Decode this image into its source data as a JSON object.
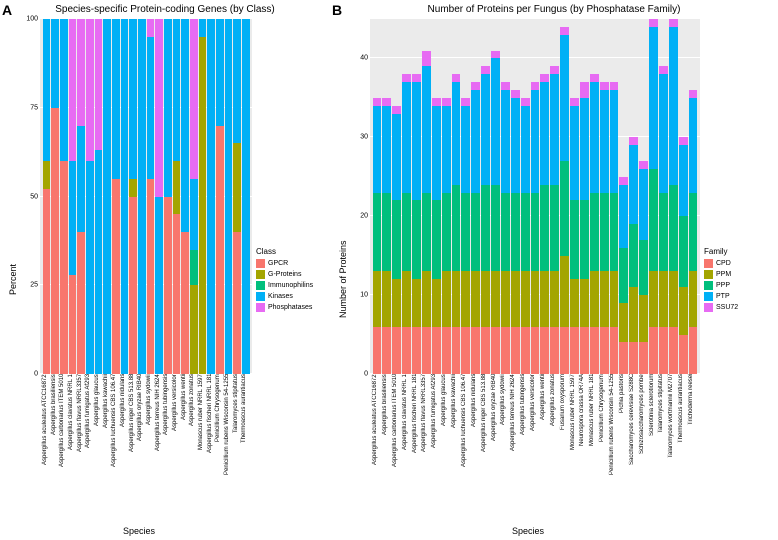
{
  "panelA": {
    "label": "A",
    "title": "Species-specific Protein-coding Genes (by Class)",
    "ylabel": "Percent",
    "xlabel": "Species",
    "ylim": [
      0,
      100
    ],
    "yticks": [
      0,
      25,
      50,
      75,
      100
    ],
    "background_color": "#ebebeb",
    "grid_color": "#ffffff",
    "legend_title": "Class",
    "classes": [
      "GPCR",
      "G-Proteins",
      "Immunophilins",
      "Kinases",
      "Phosphatases"
    ],
    "colors": {
      "GPCR": "#f8766d",
      "G-Proteins": "#a3a500",
      "Immunophilins": "#00bf7d",
      "Kinases": "#00b0f6",
      "Phosphatases": "#e76bf3"
    },
    "species": [
      "Aspergillus aculeatus ATCC16872",
      "Aspergillus brasiliensis",
      "Aspergillus carbonarius ITEM 5010",
      "Aspergillus clavatus NRRL 1",
      "Aspergillus flavus NRRL3357",
      "Aspergillus fumigatus Af293",
      "Aspergillus glaucus",
      "Aspergillus kawachii",
      "Aspergillus luchuensis CBS 106.47",
      "Aspergillus nidulans",
      "Aspergillus niger CBS 513.88",
      "Aspergillus oryzae RIB40",
      "Aspergillus sydowii",
      "Aspergillus terreus NIH 2624",
      "Aspergillus tubingensis",
      "Aspergillus versicolor",
      "Aspergillus wentii",
      "Aspergillus zonatus",
      "Monascus ruber NRRL 1597",
      "Aspergillus fischeri NRRL 181",
      "Penicillium Chrysogenum",
      "Penicillium rubens Wisconsin 54-1255",
      "Talaromyces stipitatus",
      "Thermoascus aurantiacus"
    ],
    "data": [
      {
        "GPCR": 52,
        "G-Proteins": 8,
        "Immunophilins": 0,
        "Kinases": 40,
        "Phosphatases": 0
      },
      {
        "GPCR": 75,
        "G-Proteins": 0,
        "Immunophilins": 0,
        "Kinases": 25,
        "Phosphatases": 0
      },
      {
        "GPCR": 60,
        "G-Proteins": 0,
        "Immunophilins": 0,
        "Kinases": 40,
        "Phosphatases": 0
      },
      {
        "GPCR": 28,
        "G-Proteins": 0,
        "Immunophilins": 0,
        "Kinases": 32,
        "Phosphatases": 40
      },
      {
        "GPCR": 40,
        "G-Proteins": 0,
        "Immunophilins": 0,
        "Kinases": 30,
        "Phosphatases": 30
      },
      {
        "GPCR": 0,
        "G-Proteins": 0,
        "Immunophilins": 0,
        "Kinases": 60,
        "Phosphatases": 40
      },
      {
        "GPCR": 0,
        "G-Proteins": 0,
        "Immunophilins": 0,
        "Kinases": 63,
        "Phosphatases": 37
      },
      {
        "GPCR": 0,
        "G-Proteins": 0,
        "Immunophilins": 0,
        "Kinases": 100,
        "Phosphatases": 0
      },
      {
        "GPCR": 55,
        "G-Proteins": 0,
        "Immunophilins": 0,
        "Kinases": 45,
        "Phosphatases": 0
      },
      {
        "GPCR": 0,
        "G-Proteins": 0,
        "Immunophilins": 0,
        "Kinases": 100,
        "Phosphatases": 0
      },
      {
        "GPCR": 50,
        "G-Proteins": 5,
        "Immunophilins": 0,
        "Kinases": 45,
        "Phosphatases": 0
      },
      {
        "GPCR": 0,
        "G-Proteins": 0,
        "Immunophilins": 0,
        "Kinases": 100,
        "Phosphatases": 0
      },
      {
        "GPCR": 55,
        "G-Proteins": 0,
        "Immunophilins": 0,
        "Kinases": 40,
        "Phosphatases": 5
      },
      {
        "GPCR": 0,
        "G-Proteins": 0,
        "Immunophilins": 0,
        "Kinases": 50,
        "Phosphatases": 50
      },
      {
        "GPCR": 50,
        "G-Proteins": 0,
        "Immunophilins": 0,
        "Kinases": 50,
        "Phosphatases": 0
      },
      {
        "GPCR": 45,
        "G-Proteins": 15,
        "Immunophilins": 0,
        "Kinases": 40,
        "Phosphatases": 0
      },
      {
        "GPCR": 40,
        "G-Proteins": 0,
        "Immunophilins": 0,
        "Kinases": 60,
        "Phosphatases": 0
      },
      {
        "GPCR": 0,
        "G-Proteins": 25,
        "Immunophilins": 10,
        "Kinases": 20,
        "Phosphatases": 45
      },
      {
        "GPCR": 0,
        "G-Proteins": 95,
        "Immunophilins": 0,
        "Kinases": 5,
        "Phosphatases": 0
      },
      {
        "GPCR": 0,
        "G-Proteins": 0,
        "Immunophilins": 0,
        "Kinases": 100,
        "Phosphatases": 0
      },
      {
        "GPCR": 70,
        "G-Proteins": 0,
        "Immunophilins": 0,
        "Kinases": 30,
        "Phosphatases": 0
      },
      {
        "GPCR": 0,
        "G-Proteins": 0,
        "Immunophilins": 0,
        "Kinases": 100,
        "Phosphatases": 0
      },
      {
        "GPCR": 40,
        "G-Proteins": 25,
        "Immunophilins": 0,
        "Kinases": 35,
        "Phosphatases": 0
      },
      {
        "GPCR": 0,
        "G-Proteins": 0,
        "Immunophilins": 0,
        "Kinases": 100,
        "Phosphatases": 0
      }
    ]
  },
  "panelB": {
    "label": "B",
    "title": "Number of Proteins per Fungus (by Phosphatase Family)",
    "ylabel": "Number of Proteins",
    "xlabel": "Species",
    "ylim": [
      0,
      45
    ],
    "yticks": [
      0,
      10,
      20,
      30,
      40
    ],
    "background_color": "#ebebeb",
    "grid_color": "#ffffff",
    "legend_title": "Family",
    "families": [
      "CPD",
      "PPM",
      "PPP",
      "PTP",
      "SSU72"
    ],
    "colors": {
      "CPD": "#f8766d",
      "PPM": "#a3a500",
      "PPP": "#00bf7d",
      "PTP": "#00b0f6",
      "SSU72": "#e76bf3"
    },
    "species": [
      "Aspergillus aculeatus ATCC16872",
      "Aspergillus brasiliensis",
      "Aspergillus carbonarius ITEM 5010",
      "Aspergillus clavatus NRRL 1",
      "Aspergillus fischeri NRRL 181",
      "Aspergillus flavus NRRL3357",
      "Aspergillus fumigatus Af293",
      "Aspergillus glaucus",
      "Aspergillus kawachii",
      "Aspergillus luchuensis CBS 106.47",
      "Aspergillus nidulans",
      "Aspergillus niger CBS 513.88",
      "Aspergillus oryzae RIB40",
      "Aspergillus sydowii",
      "Aspergillus terreus NIH 2624",
      "Aspergillus tubingensis",
      "Aspergillus versicolor",
      "Aspergillus wentii",
      "Aspergillus zonatus",
      "Fusarium oxysporum",
      "Monascus ruber NRRL 1597",
      "Neurospora crassa OR74A",
      "Monascus ruber NRRL 181",
      "Penicillium Chrysogenum",
      "Penicillium rubens Wisconsin 54-1255",
      "Pichia pastoris",
      "Saccharomyces cerevisiae S288C",
      "Schizosaccharomyces pombe",
      "Sclerotinia sclerotiorum",
      "Talaromyces stipitatus",
      "Talaromyces wortmannii M2707",
      "Thermoascus aurantiacus",
      "Trichoderma reesei"
    ],
    "data": [
      {
        "CPD": 6,
        "PPM": 7,
        "PPP": 10,
        "PTP": 11,
        "SSU72": 1
      },
      {
        "CPD": 6,
        "PPM": 7,
        "PPP": 10,
        "PTP": 11,
        "SSU72": 1
      },
      {
        "CPD": 6,
        "PPM": 6,
        "PPP": 10,
        "PTP": 11,
        "SSU72": 1
      },
      {
        "CPD": 6,
        "PPM": 7,
        "PPP": 10,
        "PTP": 14,
        "SSU72": 1
      },
      {
        "CPD": 6,
        "PPM": 6,
        "PPP": 10,
        "PTP": 15,
        "SSU72": 1
      },
      {
        "CPD": 6,
        "PPM": 7,
        "PPP": 10,
        "PTP": 16,
        "SSU72": 2
      },
      {
        "CPD": 6,
        "PPM": 6,
        "PPP": 10,
        "PTP": 12,
        "SSU72": 1
      },
      {
        "CPD": 6,
        "PPM": 7,
        "PPP": 10,
        "PTP": 11,
        "SSU72": 1
      },
      {
        "CPD": 6,
        "PPM": 7,
        "PPP": 11,
        "PTP": 13,
        "SSU72": 1
      },
      {
        "CPD": 6,
        "PPM": 7,
        "PPP": 10,
        "PTP": 11,
        "SSU72": 1
      },
      {
        "CPD": 6,
        "PPM": 7,
        "PPP": 10,
        "PTP": 13,
        "SSU72": 1
      },
      {
        "CPD": 6,
        "PPM": 7,
        "PPP": 11,
        "PTP": 14,
        "SSU72": 1
      },
      {
        "CPD": 6,
        "PPM": 7,
        "PPP": 11,
        "PTP": 16,
        "SSU72": 1
      },
      {
        "CPD": 6,
        "PPM": 7,
        "PPP": 10,
        "PTP": 13,
        "SSU72": 1
      },
      {
        "CPD": 6,
        "PPM": 7,
        "PPP": 10,
        "PTP": 12,
        "SSU72": 1
      },
      {
        "CPD": 6,
        "PPM": 7,
        "PPP": 10,
        "PTP": 11,
        "SSU72": 1
      },
      {
        "CPD": 6,
        "PPM": 7,
        "PPP": 10,
        "PTP": 13,
        "SSU72": 1
      },
      {
        "CPD": 6,
        "PPM": 7,
        "PPP": 11,
        "PTP": 13,
        "SSU72": 1
      },
      {
        "CPD": 6,
        "PPM": 7,
        "PPP": 11,
        "PTP": 14,
        "SSU72": 1
      },
      {
        "CPD": 6,
        "PPM": 9,
        "PPP": 12,
        "PTP": 16,
        "SSU72": 1
      },
      {
        "CPD": 6,
        "PPM": 6,
        "PPP": 10,
        "PTP": 12,
        "SSU72": 1
      },
      {
        "CPD": 6,
        "PPM": 6,
        "PPP": 10,
        "PTP": 13,
        "SSU72": 2
      },
      {
        "CPD": 6,
        "PPM": 7,
        "PPP": 10,
        "PTP": 14,
        "SSU72": 1
      },
      {
        "CPD": 6,
        "PPM": 7,
        "PPP": 10,
        "PTP": 13,
        "SSU72": 1
      },
      {
        "CPD": 6,
        "PPM": 7,
        "PPP": 10,
        "PTP": 13,
        "SSU72": 1
      },
      {
        "CPD": 4,
        "PPM": 5,
        "PPP": 7,
        "PTP": 8,
        "SSU72": 1
      },
      {
        "CPD": 4,
        "PPM": 7,
        "PPP": 8,
        "PTP": 10,
        "SSU72": 1
      },
      {
        "CPD": 4,
        "PPM": 6,
        "PPP": 7,
        "PTP": 9,
        "SSU72": 1
      },
      {
        "CPD": 6,
        "PPM": 7,
        "PPP": 13,
        "PTP": 18,
        "SSU72": 1
      },
      {
        "CPD": 6,
        "PPM": 7,
        "PPP": 10,
        "PTP": 15,
        "SSU72": 1
      },
      {
        "CPD": 6,
        "PPM": 7,
        "PPP": 11,
        "PTP": 20,
        "SSU72": 1
      },
      {
        "CPD": 5,
        "PPM": 6,
        "PPP": 9,
        "PTP": 9,
        "SSU72": 1
      },
      {
        "CPD": 6,
        "PPM": 7,
        "PPP": 10,
        "PTP": 12,
        "SSU72": 1
      }
    ]
  }
}
